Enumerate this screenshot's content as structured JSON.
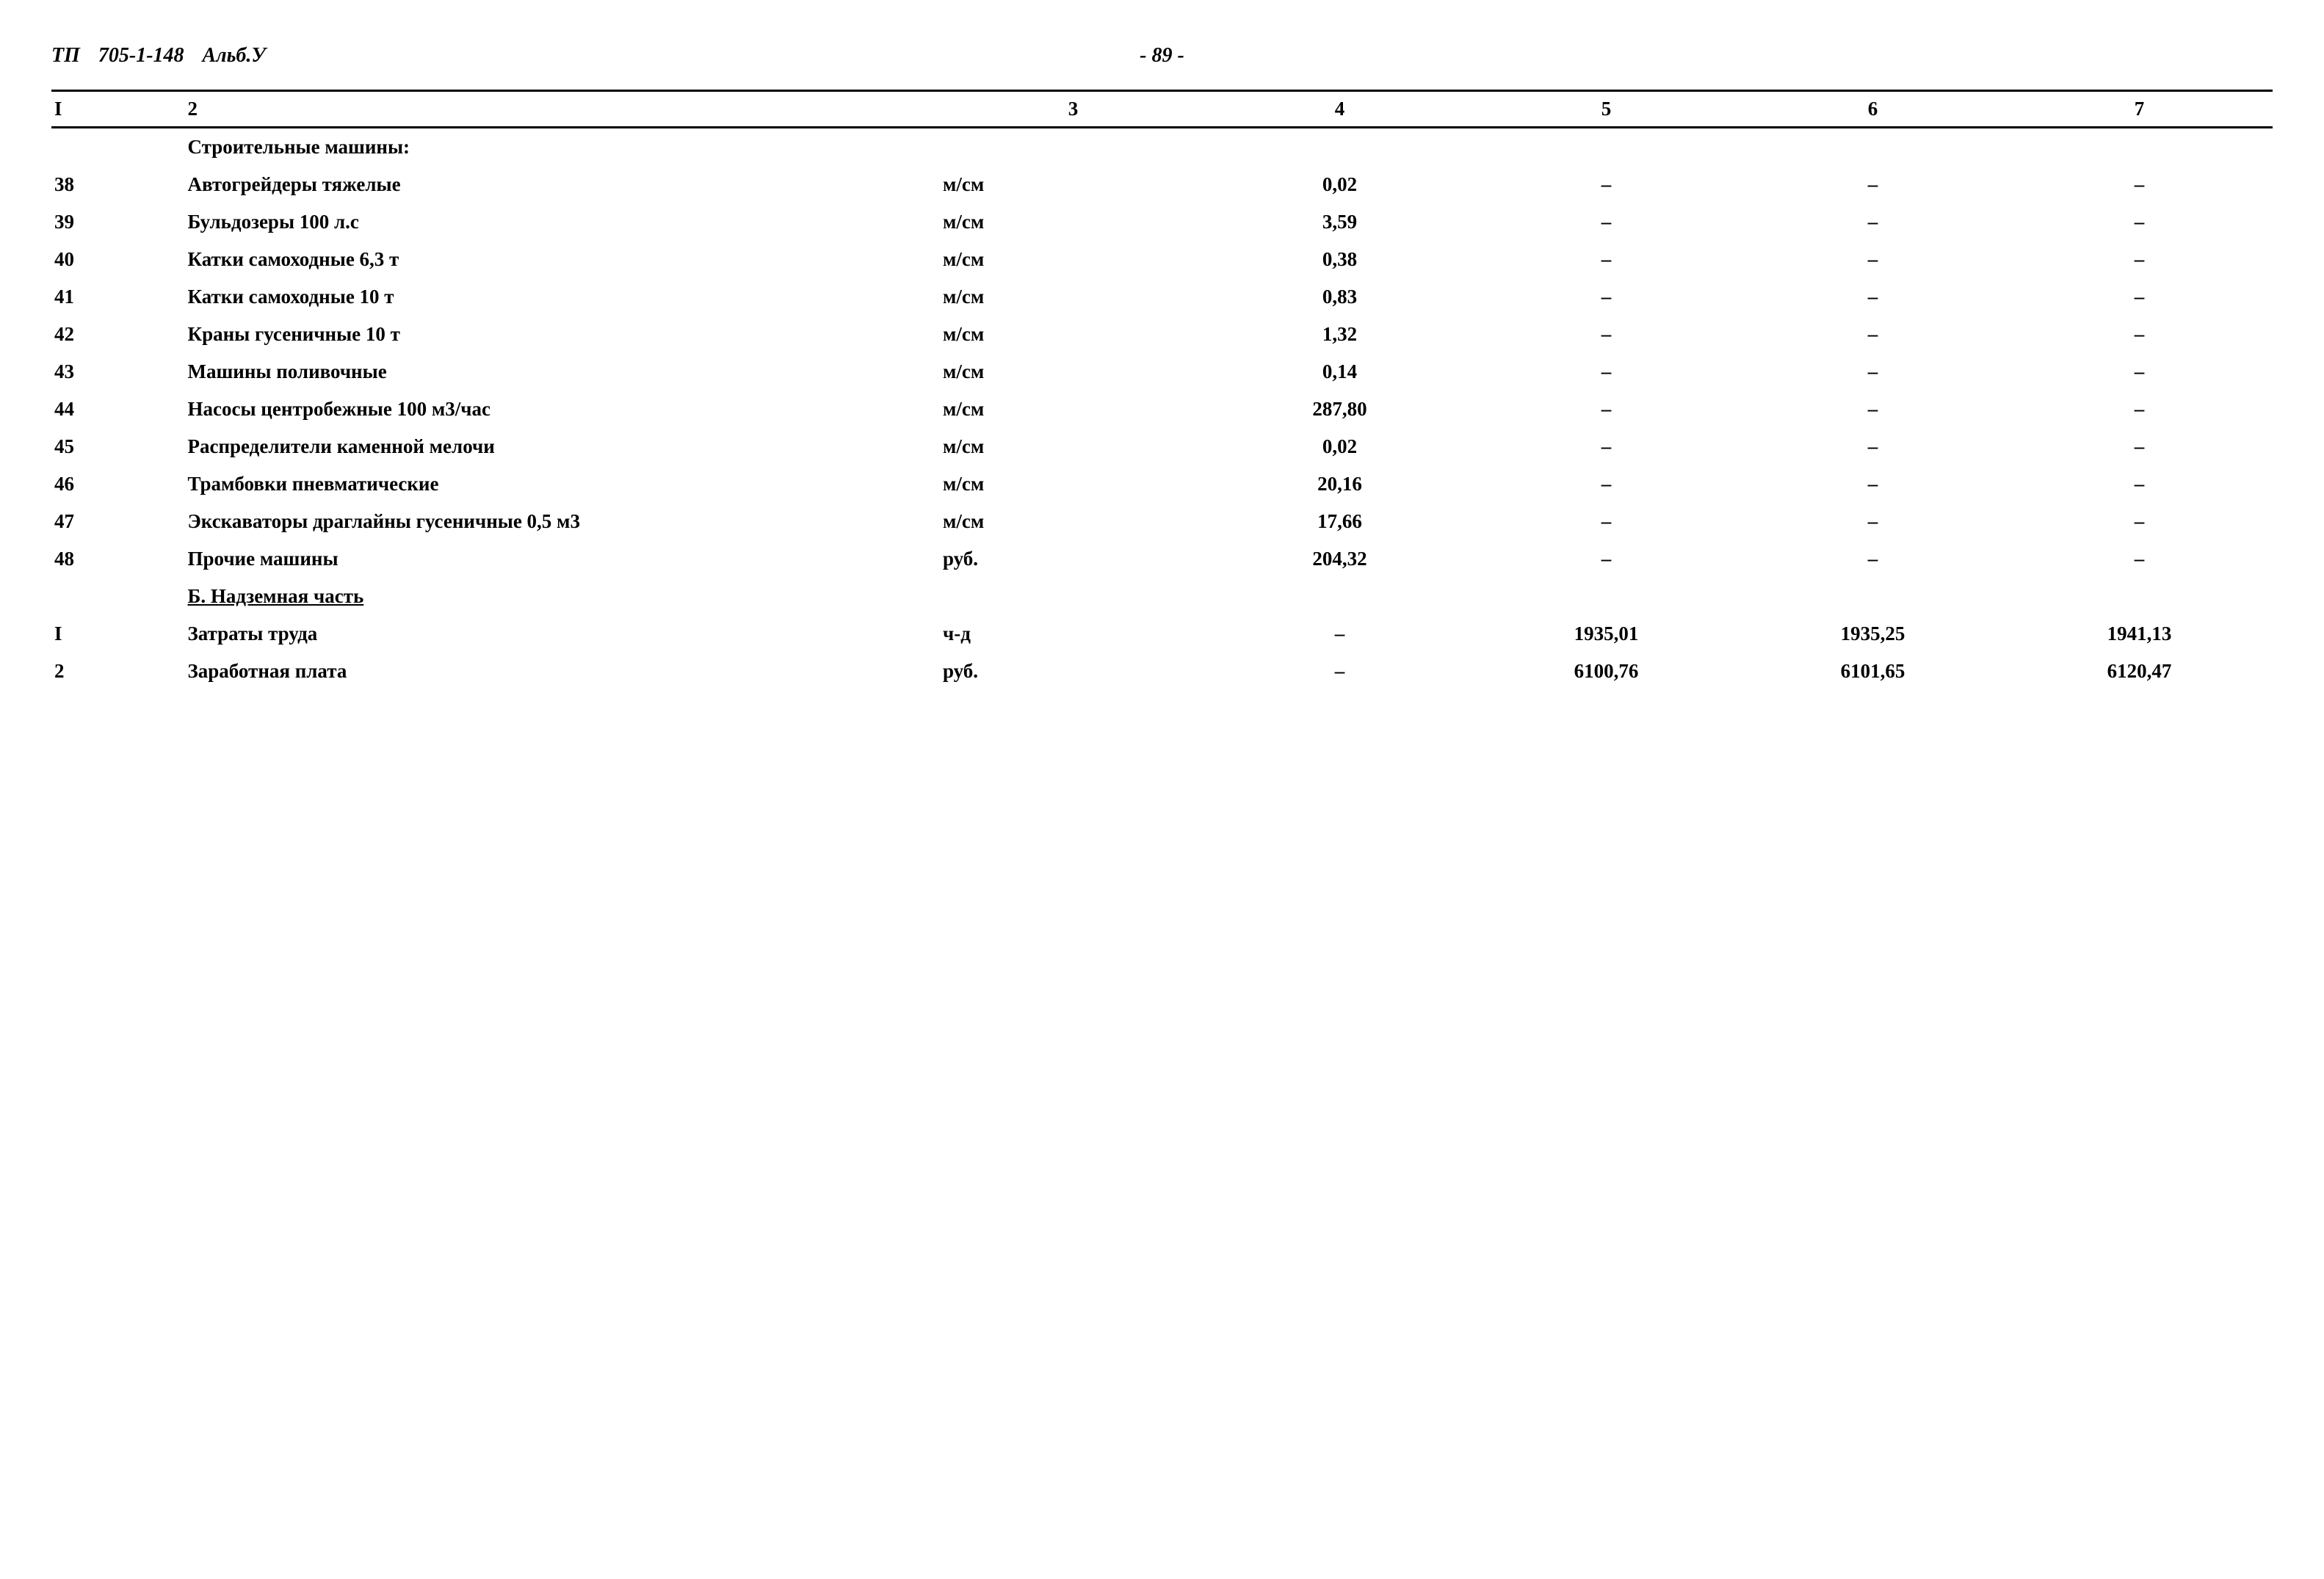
{
  "header": {
    "doc_prefix": "ТП",
    "doc_number": "705-1-148",
    "album": "Альб.У",
    "page_number": "- 89 -"
  },
  "column_headers": [
    "I",
    "2",
    "3",
    "4",
    "5",
    "6",
    "7"
  ],
  "sections": {
    "machines_title": "Строительные машины:",
    "part_b_title": "Б. Надземная часть"
  },
  "dash": "–",
  "rows": [
    {
      "num": "38",
      "name": "Автогрейдеры тяжелые",
      "unit": "м/см",
      "c4": "0,02",
      "c5": "–",
      "c6": "–",
      "c7": "–"
    },
    {
      "num": "39",
      "name": "Бульдозеры 100 л.с",
      "unit": "м/см",
      "c4": "3,59",
      "c5": "–",
      "c6": "–",
      "c7": "–"
    },
    {
      "num": "40",
      "name": "Катки самоходные 6,3 т",
      "unit": "м/см",
      "c4": "0,38",
      "c5": "–",
      "c6": "–",
      "c7": "–"
    },
    {
      "num": "41",
      "name": "Катки самоходные 10 т",
      "unit": "м/см",
      "c4": "0,83",
      "c5": "–",
      "c6": "–",
      "c7": "–"
    },
    {
      "num": "42",
      "name": "Краны гусеничные 10 т",
      "unit": "м/см",
      "c4": "1,32",
      "c5": "–",
      "c6": "–",
      "c7": "–"
    },
    {
      "num": "43",
      "name": "Машины поливочные",
      "unit": "м/см",
      "c4": "0,14",
      "c5": "–",
      "c6": "–",
      "c7": "–"
    },
    {
      "num": "44",
      "name": "Насосы центробежные 100 м3/час",
      "unit": "м/см",
      "c4": "287,80",
      "c5": "–",
      "c6": "–",
      "c7": "–"
    },
    {
      "num": "45",
      "name": "Распределители каменной мелочи",
      "unit": "м/см",
      "c4": "0,02",
      "c5": "–",
      "c6": "–",
      "c7": "–"
    },
    {
      "num": "46",
      "name": "Трамбовки пневматические",
      "unit": "м/см",
      "c4": "20,16",
      "c5": "–",
      "c6": "–",
      "c7": "–"
    },
    {
      "num": "47",
      "name": "Экскаваторы драглайны гусеничные 0,5 м3",
      "unit": "м/см",
      "c4": "17,66",
      "c5": "–",
      "c6": "–",
      "c7": "–"
    },
    {
      "num": "48",
      "name": "Прочие машины",
      "unit": "руб.",
      "c4": "204,32",
      "c5": "–",
      "c6": "–",
      "c7": "–"
    }
  ],
  "rows_b": [
    {
      "num": "I",
      "name": "Затраты труда",
      "unit": "ч-д",
      "c4": "–",
      "c5": "1935,01",
      "c6": "1935,25",
      "c7": "1941,13"
    },
    {
      "num": "2",
      "name": "Заработная плата",
      "unit": "руб.",
      "c4": "–",
      "c5": "6100,76",
      "c6": "6101,65",
      "c7": "6120,47"
    }
  ]
}
